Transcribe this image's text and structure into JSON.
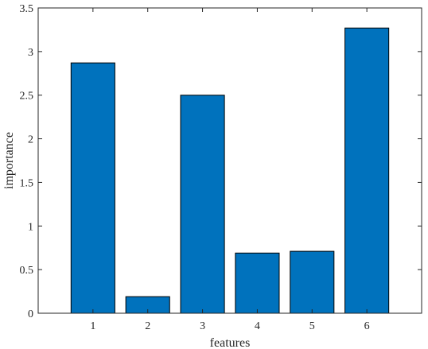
{
  "chart_data": {
    "type": "bar",
    "title": "",
    "xlabel": "features",
    "ylabel": "importance",
    "categories": [
      "1",
      "2",
      "3",
      "4",
      "5",
      "6"
    ],
    "values": [
      2.87,
      0.19,
      2.5,
      0.69,
      0.71,
      3.27
    ],
    "ylim": [
      0,
      3.5
    ],
    "xlim": [
      0,
      7
    ],
    "yticks": [
      "0",
      "0.5",
      "1",
      "1.5",
      "2",
      "2.5",
      "3",
      "3.5"
    ],
    "grid": false,
    "legend": "none",
    "bar_color": "#0072BD",
    "bar_edge_color": "#000000"
  }
}
